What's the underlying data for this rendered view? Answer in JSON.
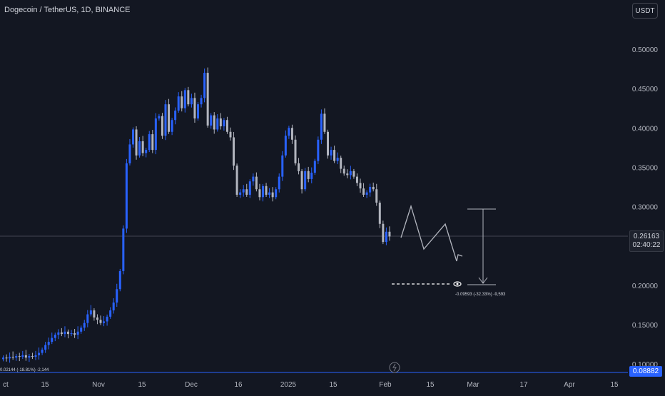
{
  "header": {
    "title": "Dogecoin / TetherUS, 1D, BINANCE"
  },
  "currency_button": {
    "label": "USDT"
  },
  "price_axis": {
    "ticks": [
      "0.50000",
      "0.45000",
      "0.40000",
      "0.35000",
      "0.30000",
      "0.20000",
      "0.15000",
      "0.10000"
    ]
  },
  "current_price": {
    "value": "0.26163",
    "countdown": "02:40:22"
  },
  "low_marker": {
    "value": "0.08882"
  },
  "time_axis": {
    "ticks": [
      "ct",
      "15",
      "Nov",
      "15",
      "Dec",
      "16",
      "2025",
      "15",
      "Feb",
      "15",
      "Mar",
      "17",
      "Apr",
      "15"
    ]
  },
  "annotations": {
    "measure_label": "-0.09593 (-32.33%) -9,593",
    "left_label": "0.02144 (-18.81%) -2,144"
  },
  "colors": {
    "up": "#2962ff",
    "down": "#b2b5be",
    "background": "#131722",
    "price_line": "#434651"
  },
  "icons": {
    "eye": "eye-icon",
    "flash": "lightning-icon"
  },
  "chart_data": {
    "type": "candlestick",
    "title": "Dogecoin / TetherUS, 1D, BINANCE",
    "ylim": [
      0.085,
      0.53
    ],
    "y_scale": "linear",
    "grid": false,
    "candles": [
      {
        "o": 0.106,
        "c": 0.108
      },
      {
        "o": 0.108,
        "c": 0.107
      },
      {
        "o": 0.107,
        "c": 0.109
      },
      {
        "o": 0.109,
        "c": 0.108
      },
      {
        "o": 0.108,
        "c": 0.11
      },
      {
        "o": 0.11,
        "c": 0.109
      },
      {
        "o": 0.109,
        "c": 0.111
      },
      {
        "o": 0.111,
        "c": 0.108
      },
      {
        "o": 0.108,
        "c": 0.11
      },
      {
        "o": 0.11,
        "c": 0.109
      },
      {
        "o": 0.109,
        "c": 0.111
      },
      {
        "o": 0.111,
        "c": 0.114
      },
      {
        "o": 0.114,
        "c": 0.118
      },
      {
        "o": 0.118,
        "c": 0.124
      },
      {
        "o": 0.124,
        "c": 0.128
      },
      {
        "o": 0.128,
        "c": 0.133
      },
      {
        "o": 0.133,
        "c": 0.137
      },
      {
        "o": 0.137,
        "c": 0.14
      },
      {
        "o": 0.14,
        "c": 0.138
      },
      {
        "o": 0.138,
        "c": 0.141
      },
      {
        "o": 0.141,
        "c": 0.138
      },
      {
        "o": 0.138,
        "c": 0.139
      },
      {
        "o": 0.139,
        "c": 0.137
      },
      {
        "o": 0.137,
        "c": 0.141
      },
      {
        "o": 0.141,
        "c": 0.146
      },
      {
        "o": 0.146,
        "c": 0.152
      },
      {
        "o": 0.152,
        "c": 0.163
      },
      {
        "o": 0.163,
        "c": 0.168
      },
      {
        "o": 0.168,
        "c": 0.159
      },
      {
        "o": 0.159,
        "c": 0.156
      },
      {
        "o": 0.156,
        "c": 0.152
      },
      {
        "o": 0.152,
        "c": 0.154
      },
      {
        "o": 0.154,
        "c": 0.16
      },
      {
        "o": 0.16,
        "c": 0.168
      },
      {
        "o": 0.168,
        "c": 0.178
      },
      {
        "o": 0.178,
        "c": 0.195
      },
      {
        "o": 0.195,
        "c": 0.218
      },
      {
        "o": 0.218,
        "c": 0.272
      },
      {
        "o": 0.272,
        "c": 0.355
      },
      {
        "o": 0.355,
        "c": 0.379
      },
      {
        "o": 0.379,
        "c": 0.398
      },
      {
        "o": 0.398,
        "c": 0.365
      },
      {
        "o": 0.365,
        "c": 0.383
      },
      {
        "o": 0.383,
        "c": 0.368
      },
      {
        "o": 0.368,
        "c": 0.372
      },
      {
        "o": 0.372,
        "c": 0.392
      },
      {
        "o": 0.392,
        "c": 0.372
      },
      {
        "o": 0.372,
        "c": 0.412
      },
      {
        "o": 0.412,
        "c": 0.415
      },
      {
        "o": 0.415,
        "c": 0.39
      },
      {
        "o": 0.39,
        "c": 0.43
      },
      {
        "o": 0.43,
        "c": 0.395
      },
      {
        "o": 0.395,
        "c": 0.41
      },
      {
        "o": 0.41,
        "c": 0.422
      },
      {
        "o": 0.422,
        "c": 0.44
      },
      {
        "o": 0.44,
        "c": 0.425
      },
      {
        "o": 0.425,
        "c": 0.448
      },
      {
        "o": 0.448,
        "c": 0.43
      },
      {
        "o": 0.43,
        "c": 0.438
      },
      {
        "o": 0.438,
        "c": 0.412
      },
      {
        "o": 0.412,
        "c": 0.43
      },
      {
        "o": 0.43,
        "c": 0.438
      },
      {
        "o": 0.438,
        "c": 0.47
      },
      {
        "o": 0.47,
        "c": 0.403
      },
      {
        "o": 0.403,
        "c": 0.416
      },
      {
        "o": 0.416,
        "c": 0.398
      },
      {
        "o": 0.398,
        "c": 0.412
      },
      {
        "o": 0.412,
        "c": 0.402
      },
      {
        "o": 0.402,
        "c": 0.41
      },
      {
        "o": 0.41,
        "c": 0.395
      },
      {
        "o": 0.395,
        "c": 0.388
      },
      {
        "o": 0.388,
        "c": 0.352
      },
      {
        "o": 0.352,
        "c": 0.315
      },
      {
        "o": 0.315,
        "c": 0.318
      },
      {
        "o": 0.318,
        "c": 0.322
      },
      {
        "o": 0.322,
        "c": 0.315
      },
      {
        "o": 0.315,
        "c": 0.332
      },
      {
        "o": 0.332,
        "c": 0.338
      },
      {
        "o": 0.338,
        "c": 0.322
      },
      {
        "o": 0.322,
        "c": 0.312
      },
      {
        "o": 0.312,
        "c": 0.326
      },
      {
        "o": 0.326,
        "c": 0.315
      },
      {
        "o": 0.315,
        "c": 0.318
      },
      {
        "o": 0.318,
        "c": 0.312
      },
      {
        "o": 0.312,
        "c": 0.322
      },
      {
        "o": 0.322,
        "c": 0.338
      },
      {
        "o": 0.338,
        "c": 0.365
      },
      {
        "o": 0.365,
        "c": 0.39
      },
      {
        "o": 0.39,
        "c": 0.4
      },
      {
        "o": 0.4,
        "c": 0.385
      },
      {
        "o": 0.385,
        "c": 0.355
      },
      {
        "o": 0.355,
        "c": 0.345
      },
      {
        "o": 0.345,
        "c": 0.322
      },
      {
        "o": 0.322,
        "c": 0.345
      },
      {
        "o": 0.345,
        "c": 0.335
      },
      {
        "o": 0.335,
        "c": 0.343
      },
      {
        "o": 0.343,
        "c": 0.358
      },
      {
        "o": 0.358,
        "c": 0.385
      },
      {
        "o": 0.385,
        "c": 0.418
      },
      {
        "o": 0.418,
        "c": 0.395
      },
      {
        "o": 0.395,
        "c": 0.365
      },
      {
        "o": 0.365,
        "c": 0.372
      },
      {
        "o": 0.372,
        "c": 0.358
      },
      {
        "o": 0.358,
        "c": 0.362
      },
      {
        "o": 0.362,
        "c": 0.348
      },
      {
        "o": 0.348,
        "c": 0.342
      },
      {
        "o": 0.342,
        "c": 0.34
      },
      {
        "o": 0.34,
        "c": 0.345
      },
      {
        "o": 0.345,
        "c": 0.338
      },
      {
        "o": 0.338,
        "c": 0.33
      },
      {
        "o": 0.33,
        "c": 0.323
      },
      {
        "o": 0.323,
        "c": 0.315
      },
      {
        "o": 0.315,
        "c": 0.318
      },
      {
        "o": 0.318,
        "c": 0.325
      },
      {
        "o": 0.325,
        "c": 0.322
      },
      {
        "o": 0.322,
        "c": 0.305
      },
      {
        "o": 0.305,
        "c": 0.278
      },
      {
        "o": 0.278,
        "c": 0.255
      },
      {
        "o": 0.255,
        "c": 0.268
      },
      {
        "o": 0.268,
        "c": 0.262
      }
    ]
  }
}
